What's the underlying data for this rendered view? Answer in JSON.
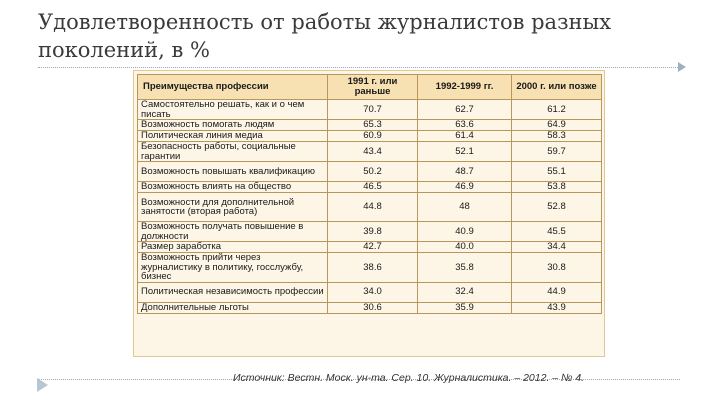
{
  "slide": {
    "title": "Удовлетворенность от работы журналистов разных поколений, в %"
  },
  "table": {
    "headers": [
      "Преимущества профессии",
      "1991 г. или раньше",
      "1992-1999 гг.",
      "2000 г. или позже"
    ],
    "rows": [
      {
        "label": "Самостоятельно решать, как и о чем писать",
        "values": [
          "70.7",
          "62.7",
          "61.2"
        ]
      },
      {
        "label": "Возможность помогать людям",
        "values": [
          "65.3",
          "63.6",
          "64.9"
        ]
      },
      {
        "label": "Политическая линия медиа",
        "values": [
          "60.9",
          "61.4",
          "58.3"
        ]
      },
      {
        "label": "Безопасность работы, социальные гарантии",
        "values": [
          "43.4",
          "52.1",
          "59.7"
        ]
      },
      {
        "label": "Возможность повышать квалификацию",
        "values": [
          "50.2",
          "48.7",
          "55.1"
        ]
      },
      {
        "label": "Возможность влиять на общество",
        "values": [
          "46.5",
          "46.9",
          "53.8"
        ]
      },
      {
        "label": "Возможности для дополнительной занятости (вторая работа)",
        "values": [
          "44.8",
          "48",
          "52.8"
        ]
      },
      {
        "label": "Возможность получать повышение в должности",
        "values": [
          "39.8",
          "40.9",
          "45.5"
        ]
      },
      {
        "label": "Размер заработка",
        "values": [
          "42.7",
          "40.0",
          "34.4"
        ]
      },
      {
        "label": "Возможность прийти через журналистику в политику, госслужбу, бизнес",
        "values": [
          "38.6",
          "35.8",
          "30.8"
        ]
      },
      {
        "label": "Политическая независимость профессии",
        "values": [
          "34.0",
          "32.4",
          "44.9"
        ]
      },
      {
        "label": "Дополнительные льготы",
        "values": [
          "30.6",
          "35.9",
          "43.9"
        ]
      }
    ]
  },
  "source": "Источник: Вестн. Моск. ун-та. Сер. 10. Журналистика. – 2012. – № 4.",
  "colors": {
    "table_background": "#fdf5e6",
    "header_background": "#f7e0b2",
    "grid_lines": "#b7975c"
  },
  "icons": {
    "top_rule_end": "triangle-marker",
    "bottom_rule_start": "triangle-marker"
  }
}
